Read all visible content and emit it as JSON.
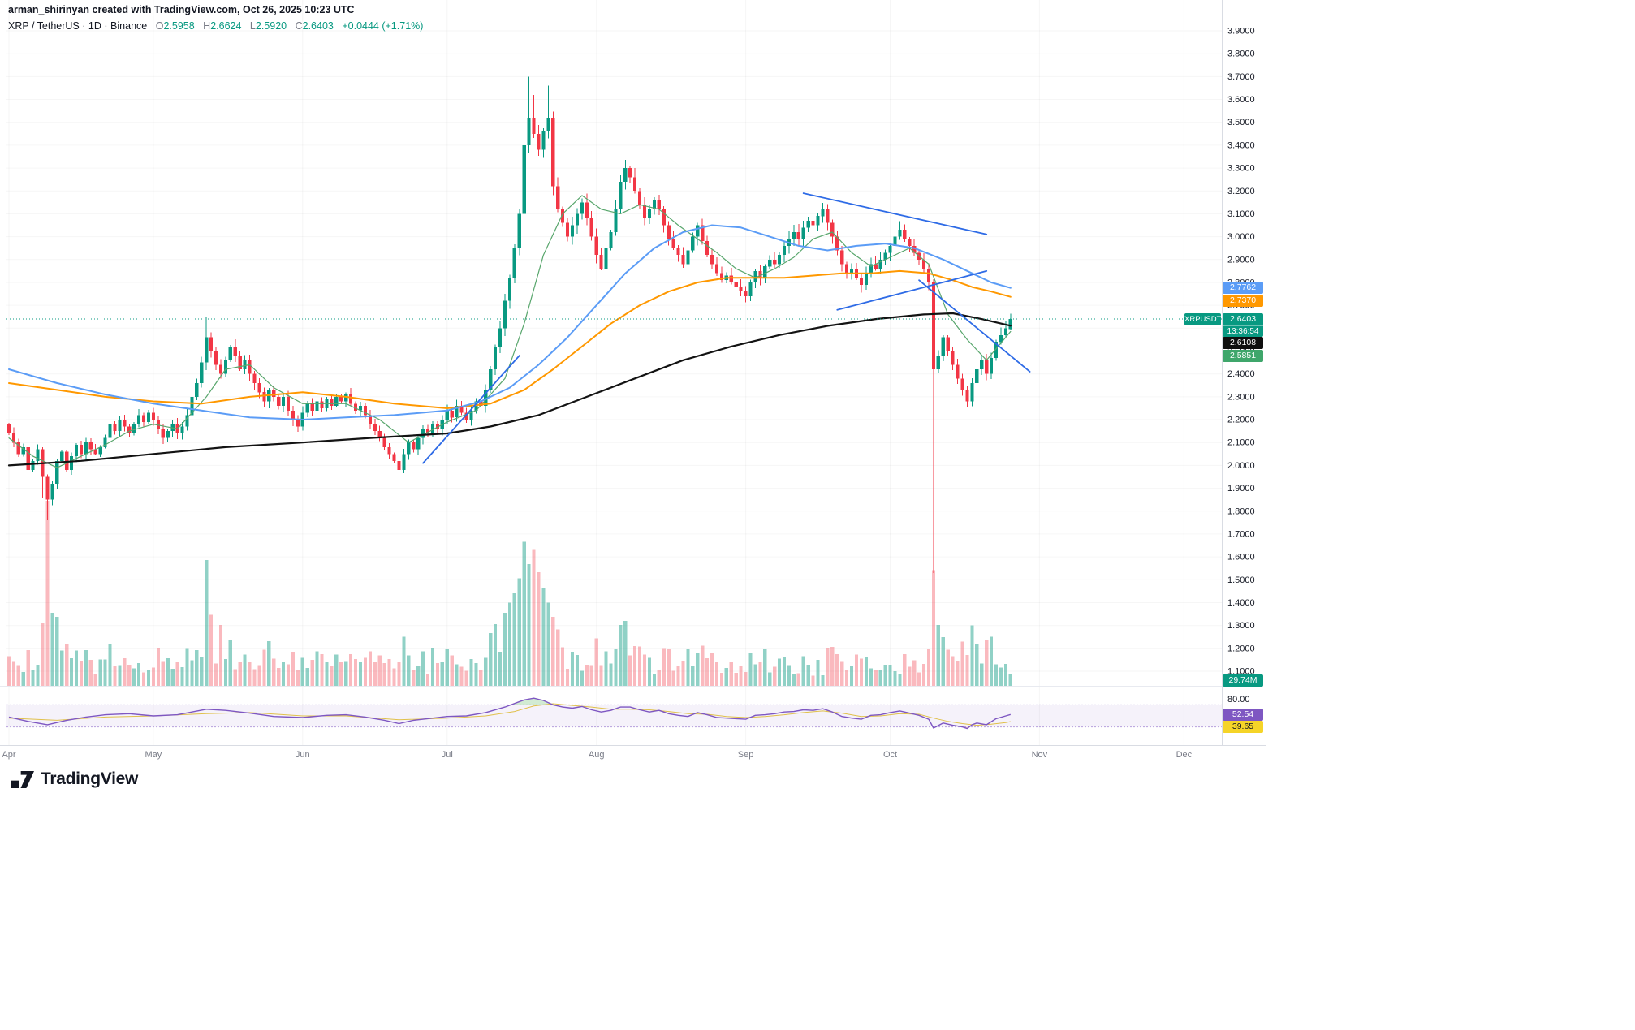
{
  "header": {
    "credit": "arman_shirinyan created with TradingView.com, Oct 26, 2025 10:23 UTC"
  },
  "legend": {
    "symbol": "XRP / TetherUS",
    "separator": "·",
    "timeframe": "1D",
    "exchange": "Binance",
    "open_label": "O",
    "open": "2.5958",
    "high_label": "H",
    "high": "2.6624",
    "low_label": "L",
    "low": "2.5920",
    "close_label": "C",
    "close": "2.6403",
    "change": "+0.0444 (+1.71%)"
  },
  "footer": {
    "brand": "TradingView"
  },
  "chart_data": {
    "type": "candlestick",
    "title": "XRP / TetherUS daily chart with volume, moving averages, trendlines and RSI",
    "ylim": [
      1.1,
      3.9
    ],
    "price_tick_step": 0.1,
    "months": [
      {
        "label": "Apr",
        "i": 0
      },
      {
        "label": "May",
        "i": 30
      },
      {
        "label": "Jun",
        "i": 61
      },
      {
        "label": "Jul",
        "i": 91
      },
      {
        "label": "Aug",
        "i": 122
      },
      {
        "label": "Sep",
        "i": 153
      },
      {
        "label": "Oct",
        "i": 183
      },
      {
        "label": "Nov",
        "i": 214
      },
      {
        "label": "Dec",
        "i": 244
      }
    ],
    "open_first": 2.18,
    "closes": [
      2.14,
      2.1,
      2.05,
      2.08,
      1.98,
      2.02,
      2.07,
      1.95,
      1.85,
      1.92,
      2.02,
      2.06,
      1.98,
      2.04,
      2.09,
      2.05,
      2.1,
      2.07,
      2.05,
      2.08,
      2.12,
      2.18,
      2.15,
      2.2,
      2.17,
      2.14,
      2.18,
      2.22,
      2.19,
      2.23,
      2.2,
      2.16,
      2.12,
      2.15,
      2.18,
      2.14,
      2.17,
      2.22,
      2.3,
      2.36,
      2.45,
      2.56,
      2.5,
      2.44,
      2.4,
      2.46,
      2.52,
      2.48,
      2.42,
      2.46,
      2.4,
      2.36,
      2.32,
      2.28,
      2.33,
      2.3,
      2.26,
      2.3,
      2.24,
      2.2,
      2.17,
      2.23,
      2.27,
      2.24,
      2.28,
      2.25,
      2.29,
      2.26,
      2.3,
      2.28,
      2.31,
      2.27,
      2.24,
      2.26,
      2.22,
      2.18,
      2.15,
      2.12,
      2.08,
      2.05,
      2.02,
      1.98,
      2.05,
      2.1,
      2.07,
      2.12,
      2.16,
      2.14,
      2.18,
      2.16,
      2.2,
      2.24,
      2.21,
      2.26,
      2.23,
      2.2,
      2.24,
      2.28,
      2.26,
      2.33,
      2.42,
      2.52,
      2.6,
      2.72,
      2.82,
      2.95,
      3.1,
      3.4,
      3.52,
      3.45,
      3.38,
      3.46,
      3.52,
      3.22,
      3.12,
      3.06,
      3.0,
      3.05,
      3.1,
      3.15,
      3.08,
      3.0,
      2.92,
      2.86,
      2.95,
      3.02,
      3.12,
      3.24,
      3.3,
      3.26,
      3.2,
      3.14,
      3.08,
      3.12,
      3.16,
      3.12,
      3.05,
      2.99,
      2.95,
      2.92,
      2.88,
      2.94,
      3.0,
      3.05,
      2.98,
      2.92,
      2.88,
      2.84,
      2.81,
      2.83,
      2.8,
      2.78,
      2.76,
      2.74,
      2.8,
      2.85,
      2.82,
      2.87,
      2.9,
      2.88,
      2.92,
      2.96,
      2.99,
      3.02,
      2.99,
      3.04,
      3.07,
      3.05,
      3.09,
      3.12,
      3.06,
      3.0,
      2.94,
      2.88,
      2.84,
      2.86,
      2.82,
      2.79,
      2.84,
      2.88,
      2.86,
      2.9,
      2.93,
      2.96,
      3.0,
      3.03,
      2.99,
      2.96,
      2.93,
      2.9,
      2.86,
      2.8,
      2.42,
      2.48,
      2.56,
      2.5,
      2.44,
      2.38,
      2.33,
      2.28,
      2.36,
      2.42,
      2.46,
      2.4,
      2.47,
      2.54,
      2.57,
      2.6,
      2.6403
    ],
    "wick_overrides": {
      "7": {
        "l": 1.86
      },
      "8": {
        "l": 1.76
      },
      "41": {
        "h": 2.65
      },
      "81": {
        "l": 1.91
      },
      "107": {
        "h": 3.6
      },
      "108": {
        "h": 3.7
      },
      "109": {
        "h": 3.62
      },
      "112": {
        "h": 3.66
      },
      "192": {
        "l": 1.53
      },
      "208": {
        "o": 2.5958,
        "h": 2.6624,
        "l": 2.592,
        "c": 2.6403
      }
    },
    "volume_overrides_m": {
      "8": 456,
      "9": 180,
      "41": 310,
      "42": 175,
      "44": 150,
      "103": 180,
      "104": 205,
      "105": 230,
      "106": 265,
      "107": 355,
      "108": 300,
      "109": 335,
      "110": 280,
      "111": 240,
      "112": 205,
      "113": 170,
      "127": 150,
      "128": 160,
      "192": 285,
      "193": 150,
      "194": 120,
      "208": 29.74
    },
    "last_volume_label": "29.74M",
    "ma": {
      "fast_green": {
        "color": "#58a66c",
        "label": "2.5851",
        "points": [
          [
            0,
            2.12
          ],
          [
            5,
            2.04
          ],
          [
            10,
            1.99
          ],
          [
            15,
            2.04
          ],
          [
            20,
            2.09
          ],
          [
            25,
            2.15
          ],
          [
            30,
            2.18
          ],
          [
            35,
            2.16
          ],
          [
            41,
            2.3
          ],
          [
            45,
            2.42
          ],
          [
            50,
            2.44
          ],
          [
            55,
            2.34
          ],
          [
            61,
            2.27
          ],
          [
            70,
            2.27
          ],
          [
            77,
            2.2
          ],
          [
            83,
            2.1
          ],
          [
            91,
            2.19
          ],
          [
            97,
            2.24
          ],
          [
            103,
            2.38
          ],
          [
            107,
            2.62
          ],
          [
            111,
            2.92
          ],
          [
            115,
            3.1
          ],
          [
            119,
            3.18
          ],
          [
            123,
            3.12
          ],
          [
            127,
            3.1
          ],
          [
            131,
            3.14
          ],
          [
            135,
            3.12
          ],
          [
            139,
            3.05
          ],
          [
            143,
            2.99
          ],
          [
            147,
            2.93
          ],
          [
            151,
            2.86
          ],
          [
            155,
            2.82
          ],
          [
            159,
            2.86
          ],
          [
            163,
            2.91
          ],
          [
            167,
            2.99
          ],
          [
            171,
            3.02
          ],
          [
            175,
            2.93
          ],
          [
            179,
            2.87
          ],
          [
            183,
            2.91
          ],
          [
            187,
            2.95
          ],
          [
            191,
            2.88
          ],
          [
            195,
            2.66
          ],
          [
            199,
            2.55
          ],
          [
            203,
            2.46
          ],
          [
            208,
            2.5851
          ]
        ]
      },
      "ma_orange": {
        "color": "#ff9800",
        "label": "2.7370",
        "points": [
          [
            0,
            2.36
          ],
          [
            10,
            2.33
          ],
          [
            20,
            2.3
          ],
          [
            30,
            2.28
          ],
          [
            40,
            2.27
          ],
          [
            50,
            2.3
          ],
          [
            61,
            2.32
          ],
          [
            70,
            2.3
          ],
          [
            80,
            2.27
          ],
          [
            91,
            2.25
          ],
          [
            100,
            2.27
          ],
          [
            107,
            2.33
          ],
          [
            113,
            2.42
          ],
          [
            119,
            2.52
          ],
          [
            125,
            2.62
          ],
          [
            131,
            2.7
          ],
          [
            137,
            2.76
          ],
          [
            143,
            2.8
          ],
          [
            149,
            2.82
          ],
          [
            155,
            2.82
          ],
          [
            161,
            2.82
          ],
          [
            167,
            2.83
          ],
          [
            173,
            2.84
          ],
          [
            179,
            2.84
          ],
          [
            185,
            2.85
          ],
          [
            191,
            2.84
          ],
          [
            196,
            2.81
          ],
          [
            200,
            2.78
          ],
          [
            204,
            2.76
          ],
          [
            208,
            2.737
          ]
        ]
      },
      "ma_blue": {
        "color": "#5b9cf6",
        "label": "2.7762",
        "points": [
          [
            0,
            2.42
          ],
          [
            10,
            2.36
          ],
          [
            20,
            2.31
          ],
          [
            30,
            2.27
          ],
          [
            40,
            2.24
          ],
          [
            50,
            2.21
          ],
          [
            61,
            2.2
          ],
          [
            70,
            2.21
          ],
          [
            80,
            2.22
          ],
          [
            91,
            2.24
          ],
          [
            98,
            2.28
          ],
          [
            104,
            2.34
          ],
          [
            110,
            2.44
          ],
          [
            116,
            2.56
          ],
          [
            122,
            2.7
          ],
          [
            128,
            2.84
          ],
          [
            134,
            2.95
          ],
          [
            140,
            3.02
          ],
          [
            146,
            3.05
          ],
          [
            152,
            3.04
          ],
          [
            158,
            3.0
          ],
          [
            164,
            2.96
          ],
          [
            170,
            2.94
          ],
          [
            176,
            2.96
          ],
          [
            182,
            2.97
          ],
          [
            188,
            2.95
          ],
          [
            194,
            2.9
          ],
          [
            200,
            2.84
          ],
          [
            204,
            2.8
          ],
          [
            208,
            2.7762
          ]
        ]
      },
      "ma_black": {
        "color": "#131313",
        "label": "2.6108",
        "points": [
          [
            0,
            2.0
          ],
          [
            15,
            2.02
          ],
          [
            30,
            2.05
          ],
          [
            45,
            2.08
          ],
          [
            61,
            2.1
          ],
          [
            75,
            2.12
          ],
          [
            91,
            2.14
          ],
          [
            100,
            2.17
          ],
          [
            110,
            2.22
          ],
          [
            120,
            2.3
          ],
          [
            130,
            2.38
          ],
          [
            140,
            2.46
          ],
          [
            150,
            2.52
          ],
          [
            160,
            2.57
          ],
          [
            170,
            2.61
          ],
          [
            180,
            2.64
          ],
          [
            190,
            2.66
          ],
          [
            196,
            2.665
          ],
          [
            202,
            2.64
          ],
          [
            208,
            2.6108
          ]
        ]
      }
    },
    "trendlines": {
      "color": "#2e6be6",
      "segments": [
        [
          [
            86,
            2.01
          ],
          [
            106,
            2.48
          ]
        ],
        [
          [
            165,
            3.19
          ],
          [
            203,
            3.01
          ]
        ],
        [
          [
            172,
            2.68
          ],
          [
            203,
            2.85
          ]
        ],
        [
          [
            189,
            2.81
          ],
          [
            212,
            2.41
          ]
        ]
      ]
    },
    "current_price": {
      "tag": "XRPUSDT",
      "value": "2.6403",
      "countdown": "13:36:54",
      "color": "#089981"
    },
    "rsi": {
      "scale_label": "80.00",
      "upper_band": 70,
      "lower_band": 30,
      "line_color": "#7e57c2",
      "signal_color": "#e0c04a",
      "value_label": "52.54",
      "signal_label": "39.65",
      "points": [
        [
          0,
          48
        ],
        [
          4,
          40
        ],
        [
          8,
          34
        ],
        [
          12,
          42
        ],
        [
          16,
          48
        ],
        [
          20,
          52
        ],
        [
          25,
          54
        ],
        [
          30,
          50
        ],
        [
          35,
          52
        ],
        [
          41,
          62
        ],
        [
          45,
          60
        ],
        [
          50,
          55
        ],
        [
          55,
          49
        ],
        [
          61,
          47
        ],
        [
          66,
          51
        ],
        [
          70,
          52
        ],
        [
          74,
          48
        ],
        [
          78,
          42
        ],
        [
          81,
          36
        ],
        [
          84,
          42
        ],
        [
          88,
          46
        ],
        [
          91,
          49
        ],
        [
          95,
          50
        ],
        [
          99,
          56
        ],
        [
          103,
          66
        ],
        [
          107,
          79
        ],
        [
          109,
          82
        ],
        [
          111,
          78
        ],
        [
          113,
          70
        ],
        [
          115,
          66
        ],
        [
          117,
          64
        ],
        [
          119,
          67
        ],
        [
          121,
          61
        ],
        [
          123,
          57
        ],
        [
          125,
          60
        ],
        [
          127,
          66
        ],
        [
          129,
          66
        ],
        [
          131,
          61
        ],
        [
          133,
          57
        ],
        [
          135,
          60
        ],
        [
          137,
          54
        ],
        [
          139,
          51
        ],
        [
          141,
          49
        ],
        [
          143,
          56
        ],
        [
          145,
          52
        ],
        [
          147,
          47
        ],
        [
          149,
          46
        ],
        [
          151,
          45
        ],
        [
          153,
          44
        ],
        [
          155,
          51
        ],
        [
          157,
          52
        ],
        [
          159,
          54
        ],
        [
          161,
          57
        ],
        [
          163,
          58
        ],
        [
          165,
          61
        ],
        [
          167,
          60
        ],
        [
          169,
          63
        ],
        [
          171,
          57
        ],
        [
          173,
          49
        ],
        [
          175,
          46
        ],
        [
          177,
          44
        ],
        [
          179,
          51
        ],
        [
          181,
          52
        ],
        [
          183,
          56
        ],
        [
          185,
          59
        ],
        [
          187,
          55
        ],
        [
          189,
          51
        ],
        [
          191,
          44
        ],
        [
          192,
          28
        ],
        [
          194,
          37
        ],
        [
          196,
          33
        ],
        [
          198,
          30
        ],
        [
          199,
          27
        ],
        [
          200,
          34
        ],
        [
          201,
          37
        ],
        [
          203,
          34
        ],
        [
          205,
          45
        ],
        [
          207,
          50
        ],
        [
          208,
          52.54
        ]
      ],
      "signal_points": [
        [
          0,
          46
        ],
        [
          10,
          42
        ],
        [
          20,
          48
        ],
        [
          30,
          50
        ],
        [
          41,
          54
        ],
        [
          50,
          56
        ],
        [
          61,
          50
        ],
        [
          70,
          50
        ],
        [
          81,
          43
        ],
        [
          91,
          46
        ],
        [
          99,
          50
        ],
        [
          105,
          58
        ],
        [
          109,
          68
        ],
        [
          113,
          72
        ],
        [
          117,
          69
        ],
        [
          121,
          66
        ],
        [
          125,
          62
        ],
        [
          129,
          62
        ],
        [
          133,
          61
        ],
        [
          137,
          58
        ],
        [
          141,
          54
        ],
        [
          145,
          53
        ],
        [
          149,
          49
        ],
        [
          153,
          47
        ],
        [
          157,
          49
        ],
        [
          161,
          52
        ],
        [
          165,
          56
        ],
        [
          169,
          59
        ],
        [
          173,
          55
        ],
        [
          177,
          49
        ],
        [
          181,
          50
        ],
        [
          185,
          54
        ],
        [
          189,
          53
        ],
        [
          192,
          46
        ],
        [
          195,
          40
        ],
        [
          198,
          36
        ],
        [
          201,
          33
        ],
        [
          204,
          35
        ],
        [
          207,
          38
        ],
        [
          208,
          39.65
        ]
      ]
    },
    "colors": {
      "up": "#089981",
      "down": "#f23645",
      "vol_up": "rgba(8,153,129,0.45)",
      "vol_down": "rgba(242,54,69,0.35)",
      "axis_text": "#131722",
      "month_text": "#787b86",
      "grid": "rgba(42,46,57,0.045)",
      "band_fill": "rgba(126,87,194,0.08)",
      "band_line": "rgba(126,87,194,0.55)",
      "overbought_fill": "rgba(76,175,80,0.25)",
      "oversold_fill": "rgba(255,82,82,0.25)"
    }
  }
}
